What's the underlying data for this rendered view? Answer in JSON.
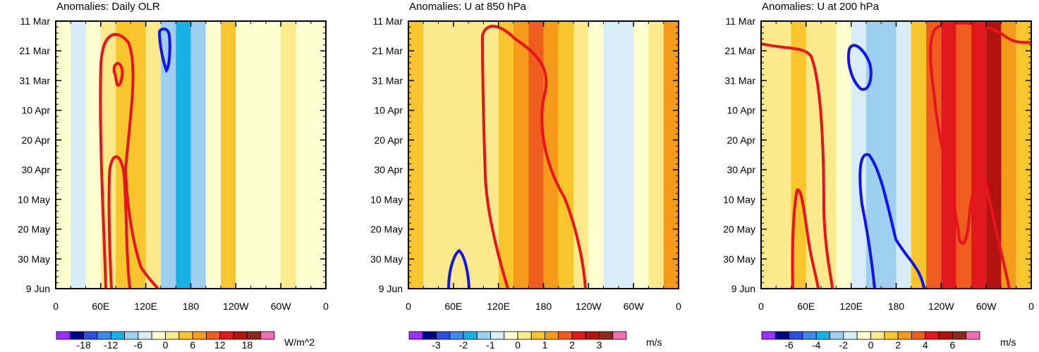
{
  "chart_data": [
    {
      "type": "heatmap",
      "title": "Anomalies: Daily OLR",
      "x_tick_labels": [
        "0",
        "60E",
        "120E",
        "180",
        "120W",
        "60W",
        "0"
      ],
      "y_tick_labels": [
        "11 Mar",
        "21 Mar",
        "31 Mar",
        "10 Apr",
        "20 Apr",
        "30 Apr",
        "10 May",
        "20 May",
        "30 May",
        "9 Jun"
      ],
      "xlim": [
        0,
        360
      ],
      "colorbar": {
        "label": "W/m^2",
        "tick_labels": [
          "-18",
          "-12",
          "-6",
          "0",
          "6",
          "12",
          "18"
        ],
        "colors": [
          "#9b30ff",
          "#00008b",
          "#2b4ee0",
          "#3f88e8",
          "#17b1e6",
          "#9fcfee",
          "#d6ecf6",
          "#ffffd1",
          "#fbe98c",
          "#f9c52c",
          "#f59b19",
          "#ee5d1d",
          "#e0181c",
          "#b21310",
          "#8b2a1e",
          "#f06fb4"
        ]
      },
      "columns": [
        {
          "lon": 10,
          "v": -3
        },
        {
          "lon": 30,
          "v": -5
        },
        {
          "lon": 50,
          "v": -3
        },
        {
          "lon": 70,
          "v": 2
        },
        {
          "lon": 90,
          "v": 4
        },
        {
          "lon": 110,
          "v": 3
        },
        {
          "lon": 130,
          "v": 1
        },
        {
          "lon": 150,
          "v": -8
        },
        {
          "lon": 170,
          "v": -12
        },
        {
          "lon": 190,
          "v": -7
        },
        {
          "lon": 210,
          "v": -3
        },
        {
          "lon": 230,
          "v": 4
        },
        {
          "lon": 250,
          "v": -2
        },
        {
          "lon": 270,
          "v": -2
        },
        {
          "lon": 290,
          "v": -1
        },
        {
          "lon": 310,
          "v": 0
        },
        {
          "lon": 330,
          "v": -2
        },
        {
          "lon": 350,
          "v": -2
        }
      ]
    },
    {
      "type": "heatmap",
      "title": "Anomalies: U at 850 hPa",
      "x_tick_labels": [
        "0",
        "60E",
        "120E",
        "180",
        "120W",
        "60W",
        "0"
      ],
      "y_tick_labels": [
        "11 Mar",
        "21 Mar",
        "31 Mar",
        "10 Apr",
        "20 Apr",
        "30 Apr",
        "10 May",
        "20 May",
        "30 May",
        "9 Jun"
      ],
      "xlim": [
        0,
        360
      ],
      "colorbar": {
        "label": "m/s",
        "tick_labels": [
          "-3",
          "-2",
          "-1",
          "0",
          "1",
          "2",
          "3"
        ],
        "colors": [
          "#9b30ff",
          "#00008b",
          "#2b4ee0",
          "#3f88e8",
          "#17b1e6",
          "#9fcfee",
          "#d6ecf6",
          "#ffffd1",
          "#fbe98c",
          "#f9c52c",
          "#f59b19",
          "#ee5d1d",
          "#e0181c",
          "#b21310",
          "#8b2a1e",
          "#f06fb4"
        ]
      },
      "columns": [
        {
          "lon": 10,
          "v": 0.6
        },
        {
          "lon": 30,
          "v": 0.4
        },
        {
          "lon": 50,
          "v": 0.3
        },
        {
          "lon": 70,
          "v": 0.1
        },
        {
          "lon": 90,
          "v": 0.4
        },
        {
          "lon": 110,
          "v": 0.3
        },
        {
          "lon": 130,
          "v": 0.8
        },
        {
          "lon": 150,
          "v": 1.4
        },
        {
          "lon": 170,
          "v": 1.6
        },
        {
          "lon": 190,
          "v": 1.2
        },
        {
          "lon": 210,
          "v": 0.5
        },
        {
          "lon": 230,
          "v": 0
        },
        {
          "lon": 250,
          "v": -0.4
        },
        {
          "lon": 270,
          "v": -0.6
        },
        {
          "lon": 290,
          "v": -0.8
        },
        {
          "lon": 310,
          "v": -0.5
        },
        {
          "lon": 330,
          "v": 0.2
        },
        {
          "lon": 350,
          "v": 1.2
        }
      ]
    },
    {
      "type": "heatmap",
      "title": "Anomalies: U at 200 hPa",
      "x_tick_labels": [
        "0",
        "60E",
        "120E",
        "180",
        "120W",
        "60W",
        "0"
      ],
      "y_tick_labels": [
        "11 Mar",
        "21 Mar",
        "31 Mar",
        "10 Apr",
        "20 Apr",
        "30 Apr",
        "10 May",
        "20 May",
        "30 May",
        "9 Jun"
      ],
      "xlim": [
        0,
        360
      ],
      "colorbar": {
        "label": "m/s",
        "tick_labels": [
          "-6",
          "-4",
          "-2",
          "0",
          "2",
          "4",
          "6"
        ],
        "colors": [
          "#9b30ff",
          "#00008b",
          "#2b4ee0",
          "#3f88e8",
          "#17b1e6",
          "#9fcfee",
          "#d6ecf6",
          "#ffffd1",
          "#fbe98c",
          "#f9c52c",
          "#f59b19",
          "#ee5d1d",
          "#e0181c",
          "#b21310",
          "#8b2a1e",
          "#f06fb4"
        ]
      },
      "columns": [
        {
          "lon": 10,
          "v": 0.5
        },
        {
          "lon": 30,
          "v": 0.8
        },
        {
          "lon": 50,
          "v": 1.2
        },
        {
          "lon": 70,
          "v": 0.6
        },
        {
          "lon": 90,
          "v": 0.3
        },
        {
          "lon": 110,
          "v": -0.5
        },
        {
          "lon": 130,
          "v": -1.5
        },
        {
          "lon": 150,
          "v": -2.5
        },
        {
          "lon": 170,
          "v": -3
        },
        {
          "lon": 190,
          "v": -2
        },
        {
          "lon": 210,
          "v": 1.5
        },
        {
          "lon": 230,
          "v": 3.5
        },
        {
          "lon": 250,
          "v": 4.5
        },
        {
          "lon": 270,
          "v": 3.5
        },
        {
          "lon": 290,
          "v": 4
        },
        {
          "lon": 310,
          "v": 5
        },
        {
          "lon": 330,
          "v": 2
        },
        {
          "lon": 350,
          "v": 1.5
        }
      ]
    }
  ]
}
